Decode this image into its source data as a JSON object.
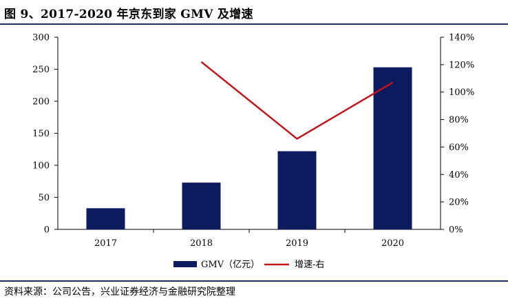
{
  "header": {
    "title": "图 9、2017-2020 年京东到家 GMV 及增速"
  },
  "footer": {
    "source": "资料来源：公司公告，兴业证券经济与金融研究院整理"
  },
  "colors": {
    "bar": "#0c1a5e",
    "line": "#c0161c",
    "rule": "#1f2f6e"
  },
  "chart_data": {
    "type": "bar+line",
    "categories": [
      "2017",
      "2018",
      "2019",
      "2020"
    ],
    "series": [
      {
        "name": "GMV（亿元）",
        "type": "bar",
        "axis": "left",
        "values": [
          33,
          73,
          122,
          253
        ]
      },
      {
        "name": "增速-右",
        "type": "line",
        "axis": "right",
        "values": [
          null,
          1.22,
          0.66,
          1.07
        ]
      }
    ],
    "left_axis": {
      "min": 0,
      "max": 300,
      "ticks": [
        "0",
        "50",
        "100",
        "150",
        "200",
        "250",
        "300"
      ]
    },
    "right_axis": {
      "min": 0,
      "max": 1.4,
      "ticks": [
        "0%",
        "20%",
        "40%",
        "60%",
        "80%",
        "100%",
        "120%",
        "140%"
      ]
    },
    "legend": {
      "bar_label": "GMV（亿元）",
      "line_label": "增速-右",
      "position": "bottom"
    },
    "grid": false
  }
}
